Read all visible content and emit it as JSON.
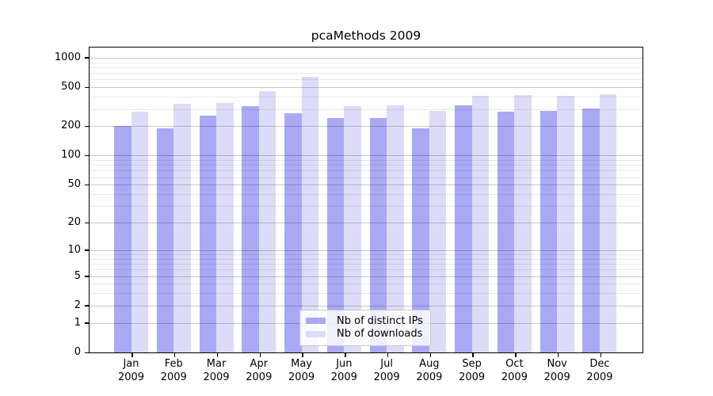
{
  "chart_data": {
    "type": "bar",
    "title": "pcaMethods 2009",
    "year_label": "2009",
    "categories": [
      "Jan",
      "Feb",
      "Mar",
      "Apr",
      "May",
      "Jun",
      "Jul",
      "Aug",
      "Sep",
      "Oct",
      "Nov",
      "Dec"
    ],
    "series": [
      {
        "name": "Nb of distinct IPs",
        "color": "#a9a9f4",
        "values": [
          200,
          190,
          255,
          324,
          270,
          242,
          242,
          192,
          325,
          281,
          289,
          301
        ]
      },
      {
        "name": "Nb of downloads",
        "color": "#dcdcf8",
        "values": [
          281,
          340,
          345,
          458,
          640,
          322,
          330,
          286,
          410,
          416,
          410,
          422
        ]
      }
    ],
    "xlabel": "",
    "ylabel": "",
    "yscale": "log1p",
    "yticks": [
      1000,
      500,
      200,
      100,
      50,
      20,
      10,
      5,
      2,
      1,
      0
    ],
    "ylim": [
      0,
      1270
    ],
    "grid": true,
    "legend_position": "inside-bottom-center",
    "colors": {
      "grid_major": "#c9c9c9",
      "grid_minor": "#ebebeb",
      "axis": "#000000",
      "text": "#000000",
      "background": "#ffffff"
    }
  }
}
